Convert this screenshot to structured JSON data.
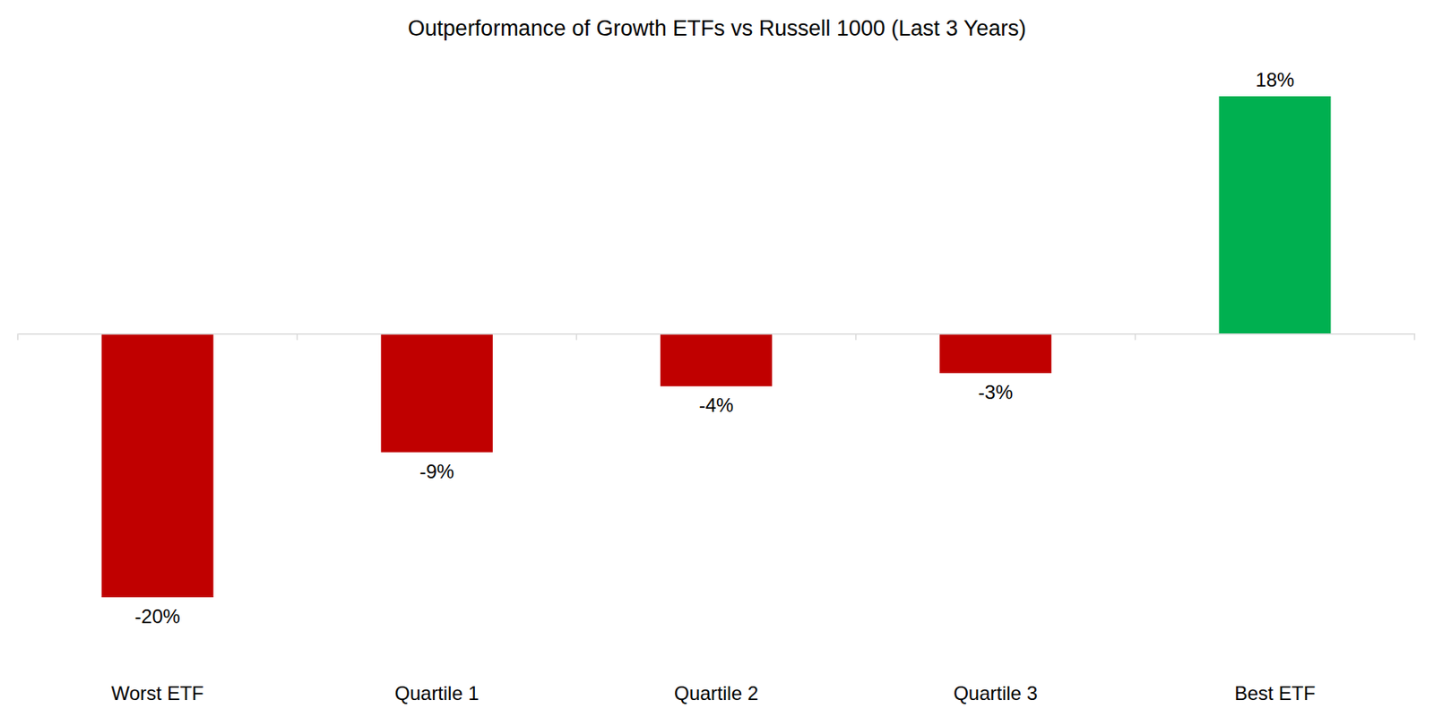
{
  "chart_data": {
    "type": "bar",
    "title": "Outperformance of Growth ETFs vs Russell 1000 (Last 3 Years)",
    "categories": [
      "Worst ETF",
      "Quartile 1",
      "Quartile 2",
      "Quartile 3",
      "Best ETF"
    ],
    "values": [
      -20,
      -9,
      -4,
      -3,
      18
    ],
    "value_labels": [
      "-20%",
      "-9%",
      "-4%",
      "-3%",
      "18%"
    ],
    "colors": [
      "#c00000",
      "#c00000",
      "#c00000",
      "#c00000",
      "#00b050"
    ],
    "data_labels": true,
    "tick_labels": "x",
    "grid": false
  }
}
